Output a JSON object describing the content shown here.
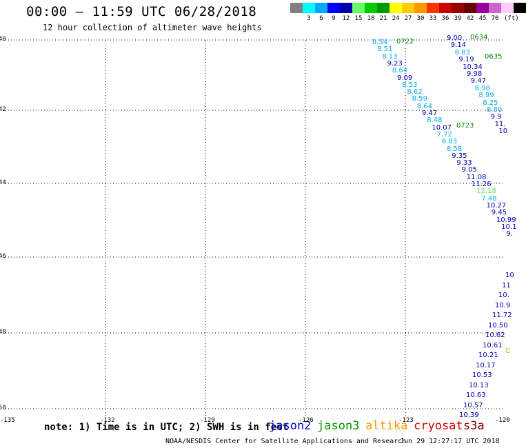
{
  "header": {
    "title": "00:00 – 11:59 UTC 06/28/2018",
    "subtitle": "12 hour collection of altimeter wave heights"
  },
  "legend": {
    "colors": [
      "#808080",
      "#00ffff",
      "#00aaff",
      "#0000ff",
      "#0000aa",
      "#66ff66",
      "#00cc00",
      "#009900",
      "#ffff00",
      "#ffcc00",
      "#ff9900",
      "#ff3300",
      "#cc0000",
      "#990000",
      "#660000",
      "#990099",
      "#cc66cc",
      "#ffccff",
      "#000000"
    ],
    "labels": [
      "3",
      "6",
      "9",
      "12",
      "15",
      "18",
      "21",
      "24",
      "27",
      "30",
      "33",
      "36",
      "39",
      "42",
      "45",
      "70"
    ],
    "unit": "(ft)"
  },
  "axes": {
    "lat_labels": [
      "40",
      "42",
      "44",
      "46",
      "48",
      "50"
    ],
    "lon_labels": [
      "-135",
      "-132",
      "-129",
      "-126",
      "-123",
      "-120"
    ]
  },
  "tracks": [
    {
      "time": "0722",
      "values": [
        "8.54",
        "8.51",
        "8.13",
        "9.23",
        "8.64",
        "9.09",
        "8.53",
        "8.62",
        "8.59",
        "8.64",
        "9.47",
        "8.48",
        "10.07",
        "7.72",
        "8.83",
        "8.58",
        "9.35",
        "9.33",
        "9.05",
        "11.08",
        "11.26",
        "12.18",
        "7.48",
        "10.27",
        "9.45",
        "10.99",
        "10.1",
        "9."
      ]
    },
    {
      "time": "0723",
      "values": []
    },
    {
      "time": "0634",
      "values": [
        "9.00",
        "9.14",
        "8.83",
        "9.19",
        "10.34",
        "9.98",
        "9.47",
        "8.98",
        "8.99",
        "8.25",
        "8.80",
        "9.9",
        "11.",
        "10"
      ]
    },
    {
      "time": "0635",
      "values": []
    }
  ],
  "bottom_column": {
    "values": [
      "10",
      "11",
      "10.",
      "10.9",
      "11.72",
      "10.50",
      "10.62",
      "10.61",
      "10.21",
      "10.17",
      "10.53",
      "10.13",
      "10.63",
      "10.57",
      "10.39"
    ]
  },
  "partial_label": {
    "text": "C",
    "color": "#ff9900"
  },
  "satellites": [
    {
      "name": "jason2",
      "color": "#0000dd"
    },
    {
      "name": "jason3",
      "color": "#009900"
    },
    {
      "name": "altika",
      "color": "#ff9900"
    },
    {
      "name": "cryosat",
      "color": "#dd0000"
    },
    {
      "name": "s3a",
      "color": "#880000"
    }
  ],
  "footer": {
    "note": "note: 1) Time is in UTC; 2) SWH is in feet",
    "credit": "NOAA/NESDIS Center for Satellite Applications and Research",
    "timestamp": "Jun 29 12:27:17 UTC 2018"
  }
}
